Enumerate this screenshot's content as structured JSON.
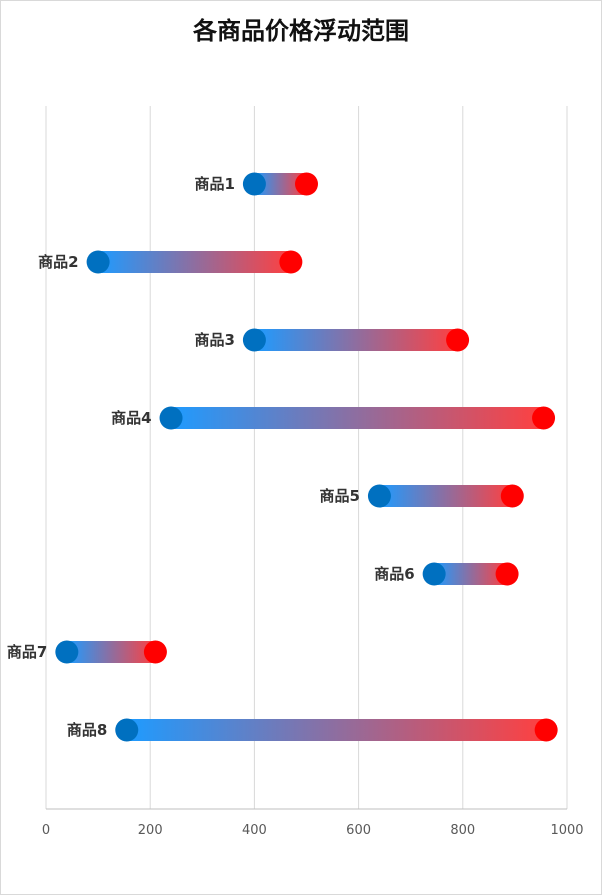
{
  "chart_data": {
    "type": "bar",
    "title": "各商品价格浮动范围",
    "xlabel": "",
    "ylabel": "",
    "xlim": [
      0,
      1000
    ],
    "x_ticks": [
      "0",
      "200",
      "400",
      "600",
      "800",
      "1000"
    ],
    "grid": true,
    "legend": "none",
    "categories": [
      "商品1",
      "商品2",
      "商品3",
      "商品4",
      "商品5",
      "商品6",
      "商品7",
      "商品8"
    ],
    "series": [
      {
        "values_min": [
          400,
          100,
          400,
          240,
          640,
          745,
          40,
          155
        ]
      },
      {
        "values_max": [
          500,
          470,
          790,
          955,
          895,
          885,
          210,
          960
        ]
      }
    ],
    "colors": {
      "min_marker": "#0070C0",
      "max_marker": "#FF0000",
      "bar_start": "#1E9BFF",
      "bar_end": "#FF4040"
    }
  }
}
